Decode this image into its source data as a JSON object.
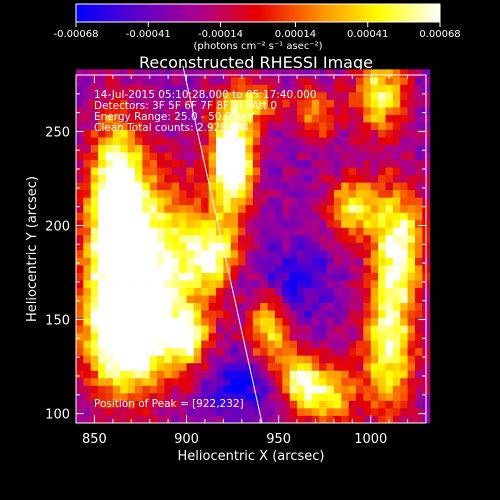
{
  "chart_data": {
    "type": "heatmap",
    "title": "Reconstructed RHESSI Image",
    "xlabel": "Heliocentric X (arcsec)",
    "ylabel": "Heliocentric Y (arcsec)",
    "xlim": [
      840,
      1030
    ],
    "ylim": [
      95,
      280
    ],
    "x_ticks": [
      850,
      900,
      950,
      1000
    ],
    "y_ticks": [
      100,
      150,
      200,
      250
    ],
    "colorbar": {
      "range": [
        -0.00068,
        0.00068
      ],
      "tick_values": [
        -0.00068,
        -0.00041,
        -0.00014,
        0.00014,
        0.00041,
        0.00068
      ],
      "tick_labels": [
        "-0.00068",
        "-0.00041",
        "-0.00014",
        "0.00014",
        "0.00041",
        "0.00068"
      ],
      "units": "(photons cm⁻² s⁻¹ asec⁻²)",
      "colormap": [
        "#0000ff",
        "#5a00c8",
        "#aa0090",
        "#e60000",
        "#ff8c00",
        "#ffff00",
        "#ffffff"
      ]
    },
    "info_lines": [
      "14-Jul-2015 05:10:28.000 to 05:17:40.000",
      "Detectors: 3F 5F 6F 7F 8F 9F, Att 0",
      "Energy Range: 25.0 - 50.0 keV",
      "Clean    Total counts: 2.92E+04"
    ],
    "peak_label": "Position of Peak = [922,232]",
    "peak_position": [
      922,
      232
    ],
    "limb_line": [
      [
        898,
        285
      ],
      [
        941,
        95
      ]
    ],
    "features": [
      {
        "cx": 925,
        "cy": 235,
        "sx": 8,
        "sy": 18,
        "amp": 1.0
      },
      {
        "cx": 878,
        "cy": 175,
        "sx": 22,
        "sy": 35,
        "amp": 0.8
      },
      {
        "cx": 862,
        "cy": 215,
        "sx": 10,
        "sy": 30,
        "amp": 0.75
      },
      {
        "cx": 865,
        "cy": 140,
        "sx": 14,
        "sy": 20,
        "amp": 0.7
      },
      {
        "cx": 915,
        "cy": 185,
        "sx": 10,
        "sy": 14,
        "amp": 0.55
      },
      {
        "cx": 945,
        "cy": 150,
        "sx": 8,
        "sy": 18,
        "amp": 0.55
      },
      {
        "cx": 990,
        "cy": 210,
        "sx": 10,
        "sy": 12,
        "amp": 0.55
      },
      {
        "cx": 1005,
        "cy": 270,
        "sx": 10,
        "sy": 15,
        "amp": 0.6
      },
      {
        "cx": 1015,
        "cy": 190,
        "sx": 10,
        "sy": 22,
        "amp": 0.7
      },
      {
        "cx": 1010,
        "cy": 135,
        "sx": 10,
        "sy": 25,
        "amp": 0.65
      },
      {
        "cx": 975,
        "cy": 110,
        "sx": 12,
        "sy": 12,
        "amp": 0.55
      },
      {
        "cx": 935,
        "cy": 265,
        "sx": 12,
        "sy": 8,
        "amp": 0.45
      },
      {
        "cx": 900,
        "cy": 140,
        "sx": 8,
        "sy": 10,
        "amp": 0.5
      },
      {
        "cx": 960,
        "cy": 120,
        "sx": 8,
        "sy": 10,
        "amp": 0.5
      },
      {
        "cx": 970,
        "cy": 260,
        "sx": 8,
        "sy": 10,
        "amp": 0.4
      },
      {
        "cx": 950,
        "cy": 170,
        "sx": 15,
        "sy": 12,
        "amp": -0.35
      },
      {
        "cx": 930,
        "cy": 115,
        "sx": 14,
        "sy": 10,
        "amp": -0.3
      }
    ]
  }
}
